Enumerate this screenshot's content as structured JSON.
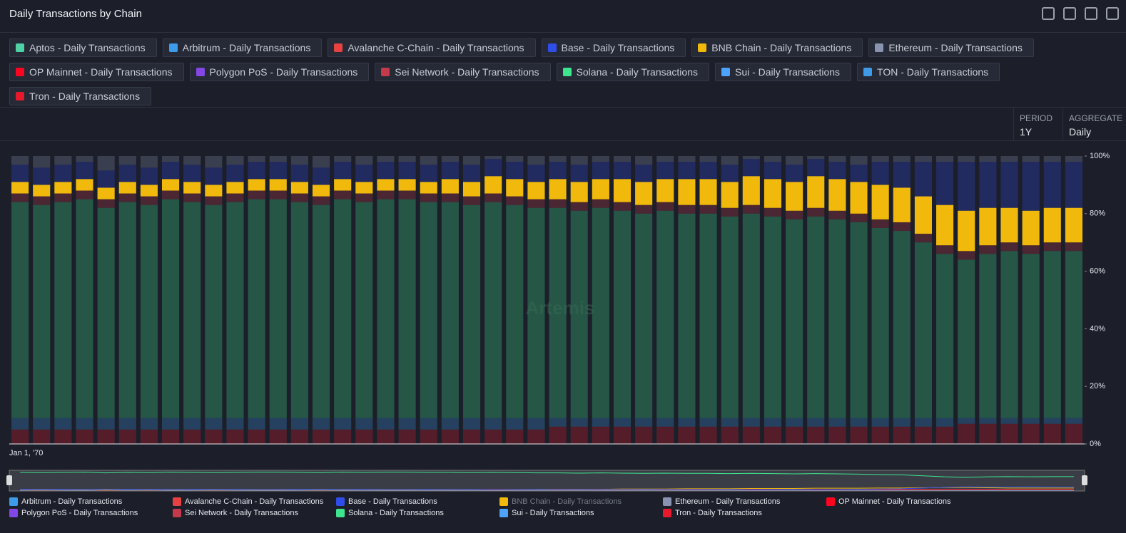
{
  "header": {
    "title": "Daily Transactions by Chain"
  },
  "filters": [
    {
      "label": "Aptos - Daily Transactions",
      "color": "#4fd1a5"
    },
    {
      "label": "Arbitrum - Daily Transactions",
      "color": "#3d9be9"
    },
    {
      "label": "Avalanche C-Chain - Daily Transactions",
      "color": "#e84142"
    },
    {
      "label": "Base - Daily Transactions",
      "color": "#2f4de8"
    },
    {
      "label": "BNB Chain - Daily Transactions",
      "color": "#f0b90b"
    },
    {
      "label": "Ethereum - Daily Transactions",
      "color": "#8a92b2"
    },
    {
      "label": "OP Mainnet - Daily Transactions",
      "color": "#ff0420"
    },
    {
      "label": "Polygon PoS - Daily Transactions",
      "color": "#8247e5"
    },
    {
      "label": "Sei Network - Daily Transactions",
      "color": "#c53a4a"
    },
    {
      "label": "Solana - Daily Transactions",
      "color": "#3ee58f"
    },
    {
      "label": "Sui - Daily Transactions",
      "color": "#4da2ff"
    },
    {
      "label": "TON - Daily Transactions",
      "color": "#3d9be9"
    },
    {
      "label": "Tron - Daily Transactions",
      "color": "#e8192c"
    }
  ],
  "controls": {
    "period": {
      "label": "PERIOD",
      "value": "1Y"
    },
    "aggregate": {
      "label": "AGGREGATE",
      "value": "Daily"
    }
  },
  "watermark": "Artemis",
  "chart_data": {
    "type": "bar",
    "stacked": true,
    "highlight_series": 4,
    "categories": [
      "Jan 1, '70",
      null,
      null,
      null,
      null,
      null,
      null,
      null,
      null,
      null,
      null,
      null,
      null,
      null,
      null,
      null,
      null,
      null,
      null,
      null,
      null,
      null,
      null,
      null,
      null,
      null,
      null,
      null,
      null,
      null,
      null,
      null,
      null,
      null,
      null,
      null,
      null,
      null,
      null,
      null,
      null,
      null,
      null,
      null,
      null,
      null,
      null,
      null,
      null,
      null
    ],
    "ylim": [
      0,
      100
    ],
    "yticks": [
      {
        "value": 0,
        "label": "0%"
      },
      {
        "value": 20,
        "label": "20%"
      },
      {
        "value": 40,
        "label": "40%"
      },
      {
        "value": 60,
        "label": "60%"
      },
      {
        "value": 80,
        "label": "80%"
      },
      {
        "value": 100,
        "label": "100%"
      }
    ],
    "series": [
      {
        "name": "Tron - Daily Transactions",
        "color": "#e8192c",
        "values": [
          5,
          5,
          5,
          5,
          5,
          5,
          5,
          5,
          5,
          5,
          5,
          5,
          5,
          5,
          5,
          5,
          5,
          5,
          5,
          5,
          5,
          5,
          5,
          5,
          5,
          6,
          6,
          6,
          6,
          6,
          6,
          6,
          6,
          6,
          6,
          6,
          6,
          6,
          6,
          6,
          6,
          6,
          6,
          6,
          7,
          7,
          7,
          7,
          7,
          7
        ]
      },
      {
        "name": "TON - Daily Transactions",
        "color": "#3d9be9",
        "values": [
          4,
          4,
          4,
          4,
          4,
          4,
          4,
          4,
          4,
          4,
          4,
          4,
          4,
          4,
          4,
          4,
          4,
          4,
          4,
          4,
          4,
          4,
          4,
          4,
          4,
          3,
          3,
          3,
          3,
          3,
          3,
          3,
          3,
          3,
          3,
          3,
          3,
          3,
          3,
          3,
          3,
          3,
          3,
          3,
          2,
          2,
          2,
          2,
          2,
          2
        ]
      },
      {
        "name": "Solana - Daily Transactions",
        "color": "#3ee58f",
        "values": [
          75,
          74,
          75,
          76,
          73,
          75,
          74,
          76,
          75,
          74,
          75,
          76,
          76,
          75,
          74,
          76,
          75,
          76,
          76,
          75,
          75,
          74,
          75,
          74,
          73,
          73,
          72,
          73,
          72,
          71,
          72,
          71,
          71,
          70,
          71,
          70,
          69,
          70,
          69,
          68,
          66,
          65,
          61,
          57,
          55,
          57,
          58,
          57,
          58,
          58
        ]
      },
      {
        "name": "Sei Network - Daily Transactions",
        "color": "#c53a4a",
        "values": [
          3,
          3,
          3,
          3,
          3,
          3,
          3,
          3,
          3,
          3,
          3,
          3,
          3,
          3,
          3,
          3,
          3,
          3,
          3,
          3,
          3,
          3,
          3,
          3,
          3,
          3,
          3,
          3,
          3,
          3,
          3,
          3,
          3,
          3,
          3,
          3,
          3,
          3,
          3,
          3,
          3,
          3,
          3,
          3,
          3,
          3,
          3,
          3,
          3,
          3
        ]
      },
      {
        "name": "BNB Chain - Daily Transactions",
        "color": "#f0b90b",
        "values": [
          4,
          4,
          4,
          4,
          4,
          4,
          4,
          4,
          4,
          4,
          4,
          4,
          4,
          4,
          4,
          4,
          4,
          4,
          4,
          4,
          5,
          5,
          6,
          6,
          6,
          7,
          7,
          7,
          8,
          8,
          8,
          9,
          9,
          9,
          10,
          10,
          10,
          11,
          11,
          11,
          12,
          12,
          13,
          14,
          14,
          13,
          12,
          12,
          12,
          12
        ]
      },
      {
        "name": "Base - Daily Transactions",
        "color": "#2f4de8",
        "values": [
          6,
          6,
          6,
          6,
          6,
          6,
          6,
          6,
          6,
          6,
          6,
          6,
          6,
          6,
          6,
          6,
          6,
          6,
          6,
          6,
          6,
          6,
          6,
          6,
          6,
          6,
          6,
          6,
          6,
          6,
          6,
          6,
          6,
          6,
          6,
          6,
          6,
          6,
          6,
          6,
          8,
          9,
          12,
          15,
          17,
          16,
          16,
          17,
          16,
          16
        ]
      },
      {
        "name": "Ethereum - Daily Transactions",
        "color": "#8a92b2",
        "values": [
          3,
          4,
          3,
          2,
          5,
          3,
          4,
          2,
          3,
          4,
          3,
          2,
          2,
          3,
          4,
          2,
          3,
          2,
          2,
          3,
          2,
          3,
          1,
          2,
          3,
          2,
          3,
          2,
          2,
          3,
          2,
          2,
          2,
          3,
          1,
          2,
          3,
          1,
          2,
          3,
          2,
          2,
          2,
          2,
          2,
          2,
          2,
          2,
          2,
          2
        ]
      }
    ],
    "legend": [
      {
        "name": "Arbitrum - Daily Transactions",
        "color": "#3d9be9"
      },
      {
        "name": "Avalanche C-Chain - Daily Transactions",
        "color": "#e84142"
      },
      {
        "name": "Base - Daily Transactions",
        "color": "#2f4de8"
      },
      {
        "name": "BNB Chain - Daily Transactions",
        "color": "#f0b90b"
      },
      {
        "name": "Ethereum - Daily Transactions",
        "color": "#8a92b2"
      },
      {
        "name": "OP Mainnet - Daily Transactions",
        "color": "#ff0420"
      },
      {
        "name": "Polygon PoS - Daily Transactions",
        "color": "#8247e5"
      },
      {
        "name": "Sei Network - Daily Transactions",
        "color": "#c53a4a"
      },
      {
        "name": "Solana - Daily Transactions",
        "color": "#3ee58f"
      },
      {
        "name": "Sui - Daily Transactions",
        "color": "#4da2ff"
      },
      {
        "name": "Tron - Daily Transactions",
        "color": "#e8192c"
      }
    ]
  }
}
